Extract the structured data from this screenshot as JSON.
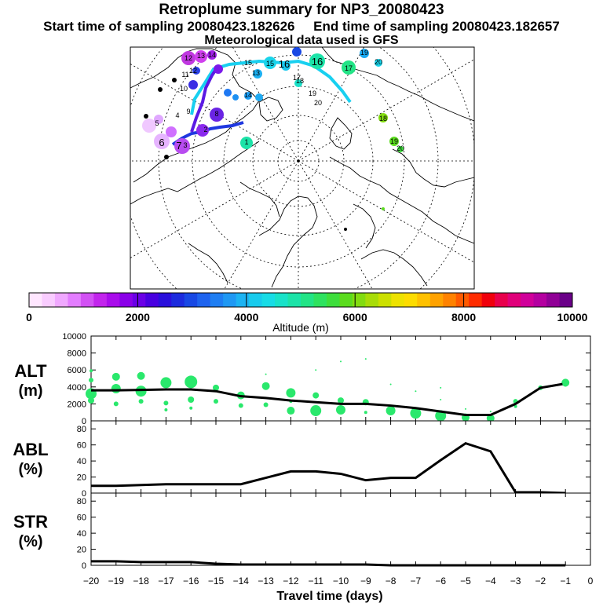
{
  "header": {
    "title": "Retroplume summary for NP3_20080423",
    "start_label": "Start time of sampling 20080423.182626",
    "end_label": "End time of sampling 20080423.182657",
    "met_label": "Meteorological data used is GFS"
  },
  "colorbar": {
    "label": "Altitude (m)",
    "ticks": [
      "0",
      "2000",
      "4000",
      "6000",
      "8000",
      "10000"
    ],
    "colors": [
      "#ffe6ff",
      "#f9ccff",
      "#f0a8ff",
      "#e37dff",
      "#d251f4",
      "#c225ec",
      "#a90ceb",
      "#8a00e8",
      "#6a00e6",
      "#4800e0",
      "#2a10dc",
      "#1c2bde",
      "#1848e4",
      "#1e63ee",
      "#1f7ef2",
      "#1f98f3",
      "#1cb3f2",
      "#18cbed",
      "#18dce6",
      "#19e2c9",
      "#1ce3a8",
      "#22e486",
      "#2ee25f",
      "#3ede3c",
      "#5bdc1e",
      "#82dc10",
      "#a8dc08",
      "#cce000",
      "#ede200",
      "#fddc00",
      "#ffc100",
      "#ffa200",
      "#ff8200",
      "#ff5a00",
      "#ff2c00",
      "#f0000c",
      "#e8004c",
      "#e0007a",
      "#d0009a",
      "#b400a0",
      "#900096",
      "#6a0088"
    ]
  },
  "map": {
    "trajectory_labels": [
      "1",
      "2",
      "3",
      "4",
      "5",
      "6",
      "7",
      "8",
      "9",
      "10",
      "11",
      "12",
      "13",
      "14",
      "15",
      "16",
      "17",
      "18",
      "19",
      "20"
    ],
    "grid_color": "#000000",
    "track_colors": [
      "#1f38e0",
      "#5a1ae4",
      "#18d0f0"
    ]
  },
  "chart_data": [
    {
      "type": "line",
      "name": "ALT",
      "ylabel_line1": "ALT",
      "ylabel_line2": "(m)",
      "x": [
        -20,
        -19,
        -18,
        -17,
        -16,
        -15,
        -14,
        -13,
        -12,
        -11,
        -10,
        -9,
        -8,
        -7,
        -6,
        -5,
        -4,
        -3,
        -2,
        -1
      ],
      "values": [
        3600,
        3600,
        3650,
        3700,
        3700,
        3500,
        2900,
        2700,
        2400,
        2200,
        2000,
        2000,
        1800,
        1500,
        1100,
        700,
        700,
        2000,
        3900,
        4400
      ],
      "ylim": [
        0,
        10000
      ],
      "yticks": [
        0,
        2000,
        4000,
        6000,
        8000,
        10000
      ],
      "ytick_labels": [
        "0",
        "2000",
        "4000",
        "6000",
        "8000",
        "10000"
      ],
      "scatter_color": "#2ae86c",
      "dots": [
        {
          "x": -20,
          "y": 5900,
          "s": 2
        },
        {
          "x": -20,
          "y": 4800,
          "s": 3
        },
        {
          "x": -20,
          "y": 3200,
          "s": 7
        },
        {
          "x": -20,
          "y": 2400,
          "s": 4
        },
        {
          "x": -19,
          "y": 5200,
          "s": 5
        },
        {
          "x": -19,
          "y": 3800,
          "s": 6
        },
        {
          "x": -19,
          "y": 2000,
          "s": 3
        },
        {
          "x": -18,
          "y": 5300,
          "s": 5
        },
        {
          "x": -18,
          "y": 3500,
          "s": 7
        },
        {
          "x": -18,
          "y": 2300,
          "s": 3
        },
        {
          "x": -17,
          "y": 4500,
          "s": 7
        },
        {
          "x": -17,
          "y": 2100,
          "s": 3
        },
        {
          "x": -17,
          "y": 1300,
          "s": 2
        },
        {
          "x": -16,
          "y": 4600,
          "s": 8
        },
        {
          "x": -16,
          "y": 2500,
          "s": 4
        },
        {
          "x": -16,
          "y": 1500,
          "s": 2
        },
        {
          "x": -15,
          "y": 3900,
          "s": 4
        },
        {
          "x": -15,
          "y": 2300,
          "s": 3
        },
        {
          "x": -14,
          "y": 3000,
          "s": 5
        },
        {
          "x": -14,
          "y": 1800,
          "s": 3
        },
        {
          "x": -13,
          "y": 4100,
          "s": 5
        },
        {
          "x": -13,
          "y": 1900,
          "s": 3
        },
        {
          "x": -13,
          "y": 5500,
          "s": 1
        },
        {
          "x": -12,
          "y": 3300,
          "s": 6
        },
        {
          "x": -12,
          "y": 1200,
          "s": 5
        },
        {
          "x": -12,
          "y": 2300,
          "s": 2
        },
        {
          "x": -11,
          "y": 3000,
          "s": 4
        },
        {
          "x": -11,
          "y": 1200,
          "s": 7
        },
        {
          "x": -11,
          "y": 6000,
          "s": 1
        },
        {
          "x": -10,
          "y": 1300,
          "s": 6
        },
        {
          "x": -10,
          "y": 2400,
          "s": 4
        },
        {
          "x": -10,
          "y": 7000,
          "s": 1
        },
        {
          "x": -9,
          "y": 2200,
          "s": 4
        },
        {
          "x": -9,
          "y": 1000,
          "s": 2
        },
        {
          "x": -9,
          "y": 7300,
          "s": 1
        },
        {
          "x": -8,
          "y": 1200,
          "s": 6
        },
        {
          "x": -8,
          "y": 4300,
          "s": 1
        },
        {
          "x": -7,
          "y": 900,
          "s": 7
        },
        {
          "x": -7,
          "y": 3500,
          "s": 1
        },
        {
          "x": -6,
          "y": 600,
          "s": 7
        },
        {
          "x": -6,
          "y": 2500,
          "s": 1
        },
        {
          "x": -6,
          "y": 3900,
          "s": 1
        },
        {
          "x": -5,
          "y": 400,
          "s": 5
        },
        {
          "x": -5,
          "y": 1400,
          "s": 1
        },
        {
          "x": -4,
          "y": 300,
          "s": 5
        },
        {
          "x": -4,
          "y": 1100,
          "s": 1
        },
        {
          "x": -3,
          "y": 2300,
          "s": 3
        },
        {
          "x": -3,
          "y": 1700,
          "s": 2
        },
        {
          "x": -2,
          "y": 3900,
          "s": 3
        },
        {
          "x": -1,
          "y": 4500,
          "s": 5
        }
      ]
    },
    {
      "type": "line",
      "name": "ABL",
      "ylabel_line1": "ABL",
      "ylabel_line2": "(%)",
      "x": [
        -20,
        -19,
        -18,
        -17,
        -16,
        -15,
        -14,
        -13,
        -12,
        -11,
        -10,
        -9,
        -8,
        -7,
        -6,
        -5,
        -4,
        -3,
        -2,
        -1
      ],
      "values": [
        9,
        9,
        10,
        11,
        11,
        11,
        11,
        19,
        27,
        27,
        24,
        16,
        19,
        19,
        41,
        62,
        52,
        1,
        1,
        0
      ],
      "ylim": [
        0,
        90
      ],
      "yticks": [
        0,
        20,
        40,
        60,
        80
      ],
      "ytick_labels": [
        "0",
        "20",
        "40",
        "60",
        "80"
      ]
    },
    {
      "type": "line",
      "name": "STR",
      "ylabel_line1": "STR",
      "ylabel_line2": "(%)",
      "x": [
        -20,
        -19,
        -18,
        -17,
        -16,
        -15,
        -14,
        -13,
        -12,
        -11,
        -10,
        -9,
        -8,
        -7,
        -6,
        -5,
        -4,
        -3,
        -2,
        -1
      ],
      "values": [
        5,
        5,
        4,
        4,
        4,
        2,
        1,
        1,
        1,
        1,
        1,
        1,
        0,
        0,
        0,
        0,
        0,
        0,
        0,
        0
      ],
      "ylim": [
        0,
        90
      ],
      "yticks": [
        0,
        20,
        40,
        60,
        80
      ],
      "ytick_labels": [
        "0",
        "20",
        "40",
        "60",
        "80"
      ],
      "xlabel": "Travel time (days)",
      "xticks": [
        -20,
        -19,
        -18,
        -17,
        -16,
        -15,
        -14,
        -13,
        -12,
        -11,
        -10,
        -9,
        -8,
        -7,
        -6,
        -5,
        -4,
        -3,
        -2,
        -1,
        0
      ],
      "xtick_labels": [
        "−20",
        "−19",
        "−18",
        "−17",
        "−16",
        "−15",
        "−14",
        "−13",
        "−12",
        "−11",
        "−10",
        "−9",
        "−8",
        "−7",
        "−6",
        "−5",
        "−4",
        "−3",
        "−2",
        "−1",
        "0"
      ]
    }
  ]
}
